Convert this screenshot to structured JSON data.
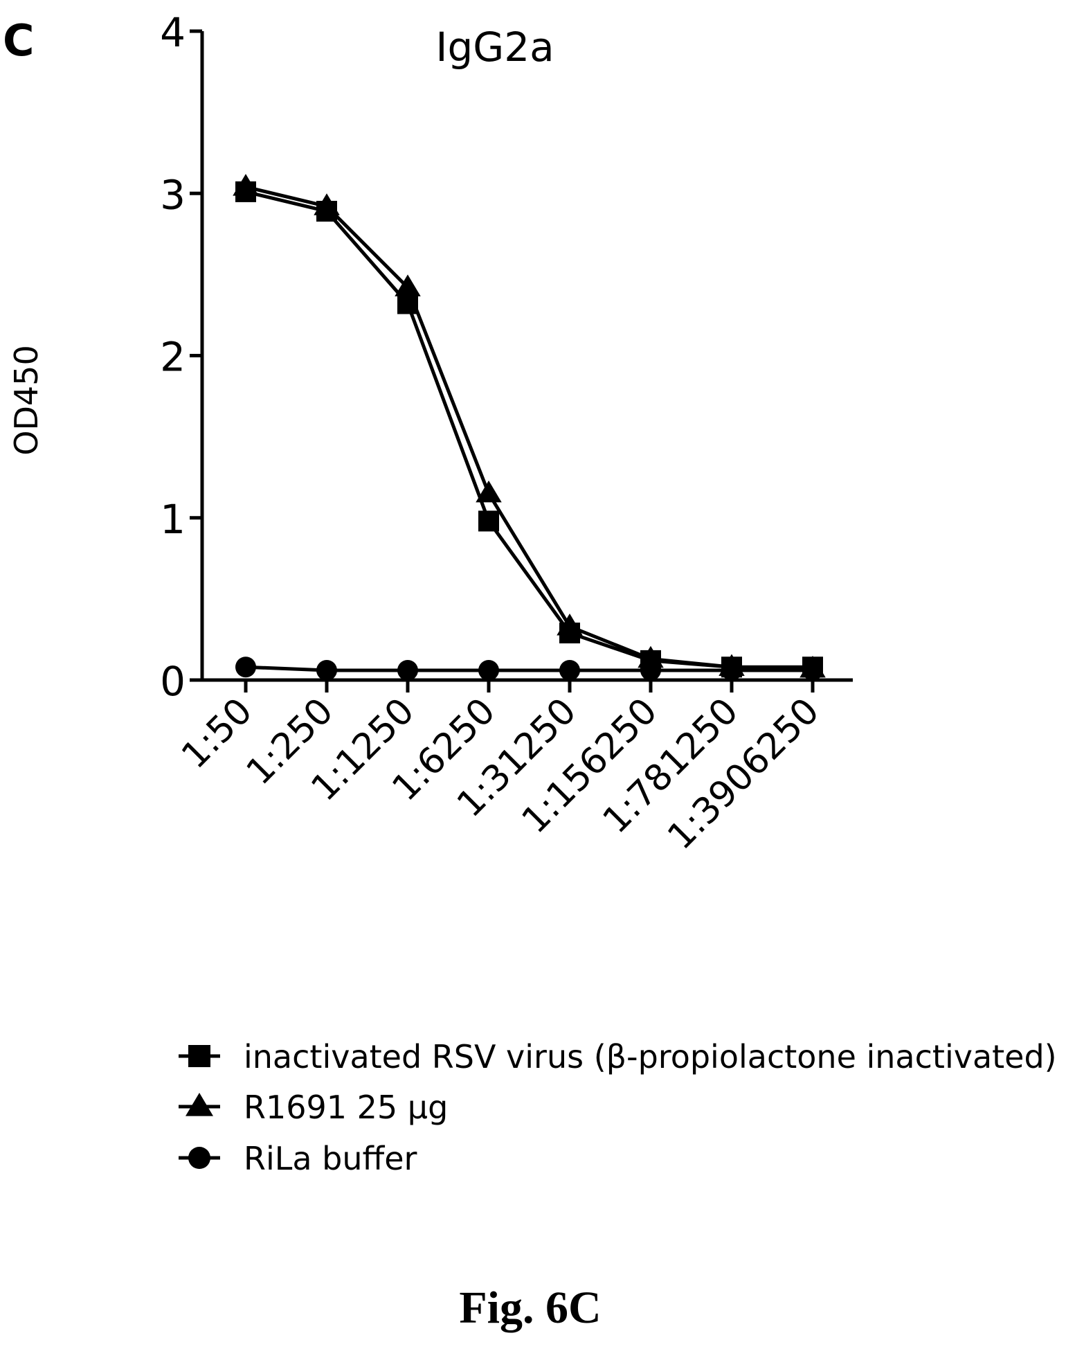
{
  "panel_label": "C",
  "figure_caption": "Fig. 6C",
  "chart_data": {
    "type": "line",
    "title": "IgG2a",
    "xlabel": "",
    "ylabel": "OD450",
    "categories": [
      "1:50",
      "1:250",
      "1:1250",
      "1:6250",
      "1:31250",
      "1:156250",
      "1:781250",
      "1:3906250"
    ],
    "ylim": [
      0,
      4
    ],
    "yticks": [
      0,
      1,
      2,
      3,
      4
    ],
    "grid": false,
    "legend_position": "bottom",
    "series": [
      {
        "name": "inactivated RSV virus (β-propiolactone inactivated)",
        "marker": "square",
        "values": [
          3.01,
          2.89,
          2.32,
          0.98,
          0.29,
          0.12,
          0.08,
          0.08
        ]
      },
      {
        "name": "R1691 25 µg",
        "marker": "triangle",
        "values": [
          3.04,
          2.92,
          2.42,
          1.15,
          0.33,
          0.13,
          0.08,
          0.07
        ]
      },
      {
        "name": "RiLa buffer",
        "marker": "circle",
        "values": [
          0.08,
          0.06,
          0.06,
          0.06,
          0.06,
          0.06,
          0.06,
          0.06
        ]
      }
    ]
  }
}
